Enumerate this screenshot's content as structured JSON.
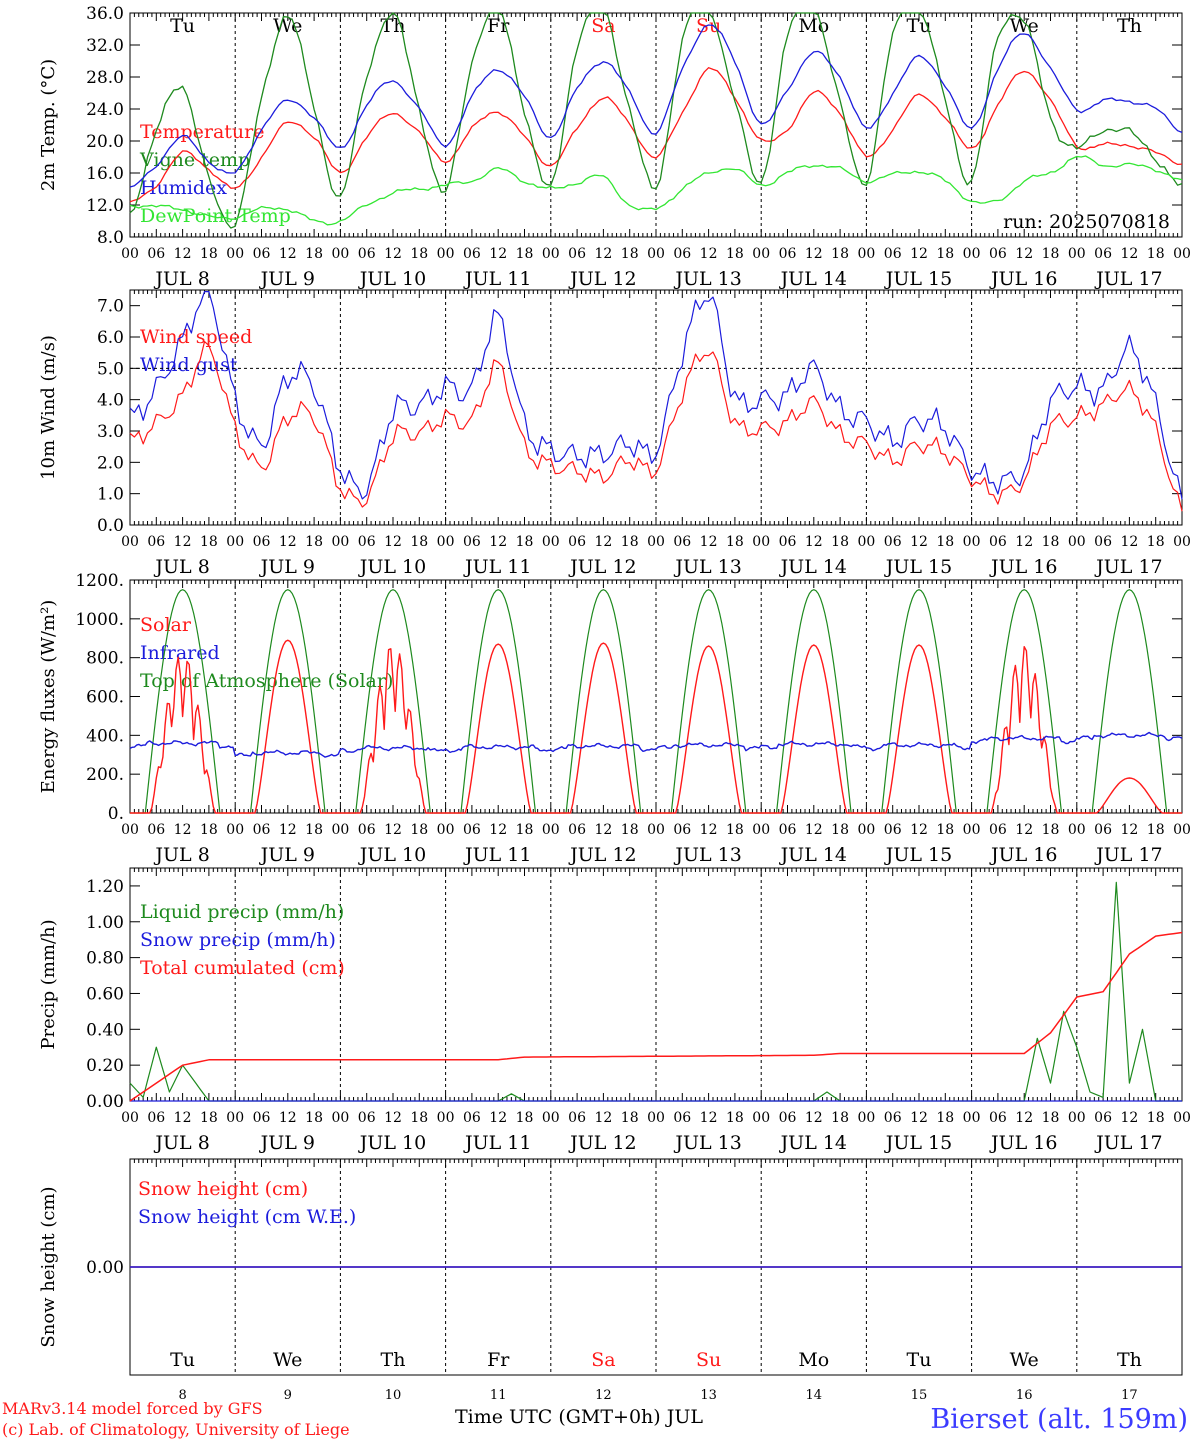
{
  "colors": {
    "red": "#ff1a1a",
    "darkgreen": "#1e8a1e",
    "blue": "#1c1cdc",
    "lightgreen": "#33e633",
    "axis": "#000000",
    "station": "#3b3bff"
  },
  "time_axis": {
    "hour_labels": [
      "00",
      "06",
      "12",
      "18"
    ],
    "final_label": "00",
    "date_labels": [
      "JUL  8",
      "JUL  9",
      "JUL 10",
      "JUL 11",
      "JUL 12",
      "JUL 13",
      "JUL 14",
      "JUL 15",
      "JUL 16",
      "JUL 17"
    ],
    "weekdays": [
      "Tu",
      "We",
      "Th",
      "Fr",
      "Sa",
      "Su",
      "Mo",
      "Tu",
      "We",
      "Th"
    ],
    "weekend_weekdays": [
      "Sa",
      "Su"
    ],
    "day_numbers": [
      "8",
      "9",
      "10",
      "11",
      "12",
      "13",
      "14",
      "15",
      "16",
      "17"
    ],
    "xlabel": "Time UTC (GMT+0h) JUL"
  },
  "footer": {
    "credit_line1": "MARv3.14 model forced by GFS",
    "credit_line2": "(c) Lab. of Climatology, University of Liege",
    "station": "Bierset (alt. 159m)"
  },
  "chart_data": [
    {
      "type": "line",
      "ylabel": "2m Temp. (°C)",
      "ylim": [
        8,
        36
      ],
      "yticks": [
        "8.0",
        "12.0",
        "16.0",
        "20.0",
        "24.0",
        "28.0",
        "32.0",
        "36.0"
      ],
      "run_label": "run: 2025070818",
      "x_unit": "hours since JUL 8 00 UTC, every 6 h",
      "x": [
        0,
        6,
        12,
        18,
        24,
        30,
        36,
        42,
        48,
        54,
        60,
        66,
        72,
        78,
        84,
        90,
        96,
        102,
        108,
        114,
        120,
        126,
        132,
        138,
        144,
        150,
        156,
        162,
        168,
        174,
        180,
        186,
        192,
        198,
        204,
        210,
        216,
        222,
        228,
        234,
        240
      ],
      "series": [
        {
          "name": "Temperature",
          "color": "red",
          "values": [
            12.2,
            14.5,
            18.5,
            16.5,
            14.0,
            18.0,
            22.3,
            20.5,
            16.0,
            20.5,
            23.5,
            21.0,
            17.5,
            21.5,
            23.7,
            20.5,
            17.0,
            21.5,
            25.5,
            22.0,
            18.0,
            23.5,
            29.0,
            25.5,
            20.0,
            21.5,
            26.0,
            23.5,
            18.0,
            21.5,
            25.7,
            23.0,
            19.0,
            24.5,
            28.8,
            25.0,
            19.5,
            19.5,
            19.5,
            18.5,
            17.2
          ]
        },
        {
          "name": "Vigne temp",
          "color": "darkgreen",
          "values": [
            11.0,
            21.0,
            27.0,
            15.0,
            10.0,
            25.0,
            36.0,
            24.0,
            13.0,
            28.0,
            36.0,
            24.0,
            13.5,
            30.0,
            36.5,
            24.0,
            14.0,
            32.0,
            36.5,
            24.0,
            14.0,
            32.5,
            37.0,
            25.0,
            15.0,
            33.0,
            37.0,
            24.5,
            15.0,
            33.0,
            37.0,
            25.0,
            15.0,
            33.0,
            35.0,
            23.0,
            19.0,
            21.5,
            21.0,
            18.0,
            14.0
          ]
        },
        {
          "name": "Humidex",
          "color": "blue",
          "values": [
            14.0,
            17.0,
            20.5,
            17.5,
            16.0,
            21.5,
            25.0,
            23.0,
            19.0,
            24.5,
            27.5,
            24.0,
            19.5,
            25.5,
            29.0,
            25.5,
            20.5,
            26.5,
            30.0,
            26.0,
            21.0,
            29.0,
            34.5,
            30.0,
            22.0,
            26.5,
            31.0,
            28.0,
            21.5,
            26.0,
            30.5,
            27.0,
            21.5,
            29.0,
            33.5,
            29.0,
            24.0,
            25.0,
            25.0,
            24.0,
            21.2
          ]
        },
        {
          "name": "DewPoint Temp",
          "color": "lightgreen",
          "values": [
            12.0,
            11.8,
            11.5,
            10.5,
            10.5,
            11.5,
            11.5,
            10.0,
            10.0,
            12.0,
            13.5,
            14.0,
            14.5,
            15.0,
            16.5,
            15.0,
            14.0,
            14.8,
            15.5,
            12.0,
            11.5,
            14.0,
            16.0,
            16.5,
            14.5,
            16.0,
            17.0,
            16.5,
            15.0,
            15.8,
            16.2,
            15.0,
            12.5,
            12.5,
            15.0,
            16.0,
            18.0,
            17.0,
            17.0,
            16.5,
            15.0
          ]
        }
      ]
    },
    {
      "type": "line",
      "ylabel": "10m Wind (m/s)",
      "ylim": [
        0,
        7.5
      ],
      "yticks": [
        "0.0",
        "1.0",
        "2.0",
        "3.0",
        "4.0",
        "5.0",
        "6.0",
        "7.0"
      ],
      "reference_line": 5.0,
      "x_unit": "hours since JUL 8 00 UTC, every 6 h",
      "x": [
        0,
        6,
        12,
        18,
        24,
        30,
        36,
        42,
        48,
        54,
        60,
        66,
        72,
        78,
        84,
        90,
        96,
        102,
        108,
        114,
        120,
        126,
        132,
        138,
        144,
        150,
        156,
        162,
        168,
        174,
        180,
        186,
        192,
        198,
        204,
        210,
        216,
        222,
        228,
        234,
        240
      ],
      "series": [
        {
          "name": "Wind speed",
          "color": "red",
          "values": [
            2.6,
            3.3,
            4.2,
            5.6,
            3.0,
            1.8,
            3.5,
            3.5,
            1.2,
            0.8,
            2.8,
            3.0,
            3.5,
            3.3,
            5.0,
            2.5,
            2.0,
            1.8,
            1.5,
            2.0,
            1.8,
            4.3,
            5.6,
            3.2,
            3.0,
            3.3,
            4.0,
            2.9,
            2.5,
            2.0,
            2.6,
            2.4,
            1.5,
            0.9,
            1.4,
            3.2,
            3.5,
            3.8,
            4.2,
            3.0,
            0.5
          ]
        },
        {
          "name": "Wind gust",
          "color": "blue",
          "values": [
            3.3,
            4.4,
            6.0,
            7.3,
            3.9,
            2.5,
            4.8,
            4.5,
            1.8,
            1.1,
            3.6,
            3.9,
            4.5,
            4.3,
            6.5,
            3.2,
            2.5,
            2.3,
            2.2,
            2.5,
            2.4,
            5.6,
            7.4,
            4.0,
            3.9,
            4.2,
            5.1,
            3.7,
            3.2,
            2.6,
            3.4,
            3.2,
            1.8,
            1.3,
            1.7,
            4.0,
            4.5,
            4.3,
            5.5,
            3.8,
            0.9
          ]
        }
      ]
    },
    {
      "type": "line",
      "ylabel": "Energy fluxes (W/m²)",
      "ylim": [
        0,
        1200
      ],
      "yticks": [
        "0.",
        "200.",
        "400.",
        "600.",
        "800.",
        "1000.",
        "1200."
      ],
      "x_unit": "hours since JUL 8 00 UTC",
      "daily_peaks_x": [
        12,
        36,
        60,
        84,
        108,
        132,
        156,
        180,
        204,
        228
      ],
      "series": [
        {
          "name": "Solar",
          "color": "red",
          "daily_peak_values": [
            830,
            890,
            880,
            870,
            875,
            860,
            865,
            865,
            870,
            180
          ]
        },
        {
          "name": "Infrared",
          "color": "blue",
          "daily_mean_values": [
            345,
            295,
            320,
            325,
            330,
            335,
            340,
            335,
            370,
            385
          ]
        },
        {
          "name": "Top of Atmosphere (Solar)",
          "color": "darkgreen",
          "daily_peak_values": [
            1150,
            1150,
            1150,
            1150,
            1150,
            1150,
            1150,
            1150,
            1150,
            1150
          ]
        }
      ]
    },
    {
      "type": "line",
      "ylabel": "Precip (mm/h)",
      "ylim": [
        0,
        1.3
      ],
      "yticks": [
        "0.00",
        "0.20",
        "0.40",
        "0.60",
        "0.80",
        "1.00",
        "1.20"
      ],
      "x_unit": "hours since JUL 8 00 UTC",
      "series": [
        {
          "name": "Liquid precip (mm/h)",
          "color": "darkgreen",
          "points": [
            [
              0,
              0.1
            ],
            [
              3,
              0.02
            ],
            [
              6,
              0.3
            ],
            [
              9,
              0.05
            ],
            [
              12,
              0.2
            ],
            [
              15,
              0.1
            ],
            [
              18,
              0.0
            ],
            [
              84,
              0.0
            ],
            [
              87,
              0.04
            ],
            [
              90,
              0.0
            ],
            [
              156,
              0.0
            ],
            [
              159,
              0.05
            ],
            [
              162,
              0.0
            ],
            [
              204,
              0.0
            ],
            [
              207,
              0.35
            ],
            [
              210,
              0.1
            ],
            [
              213,
              0.5
            ],
            [
              216,
              0.3
            ],
            [
              219,
              0.05
            ],
            [
              222,
              0.02
            ],
            [
              225,
              1.22
            ],
            [
              228,
              0.1
            ],
            [
              231,
              0.4
            ],
            [
              234,
              0.0
            ],
            [
              240,
              0.0
            ]
          ]
        },
        {
          "name": "Snow precip (mm/h)",
          "color": "blue",
          "points": [
            [
              0,
              0.0
            ],
            [
              240,
              0.0
            ]
          ]
        },
        {
          "name": "Total cumulated (cm)",
          "color": "red",
          "points": [
            [
              0,
              0.0
            ],
            [
              6,
              0.1
            ],
            [
              12,
              0.2
            ],
            [
              18,
              0.23
            ],
            [
              84,
              0.23
            ],
            [
              90,
              0.245
            ],
            [
              156,
              0.255
            ],
            [
              162,
              0.265
            ],
            [
              204,
              0.265
            ],
            [
              210,
              0.38
            ],
            [
              216,
              0.58
            ],
            [
              222,
              0.61
            ],
            [
              228,
              0.82
            ],
            [
              234,
              0.92
            ],
            [
              240,
              0.94
            ]
          ]
        }
      ]
    },
    {
      "type": "line",
      "ylabel": "Snow height (cm)",
      "ylim": [
        -1,
        1
      ],
      "yticks": [
        "0.00"
      ],
      "x_unit": "hours since JUL 8 00 UTC",
      "series": [
        {
          "name": "Snow height (cm)",
          "color": "red",
          "points": [
            [
              0,
              0.0
            ],
            [
              240,
              0.0
            ]
          ]
        },
        {
          "name": "Snow height (cm W.E.)",
          "color": "blue",
          "points": [
            [
              0,
              0.0
            ],
            [
              240,
              0.0
            ]
          ]
        }
      ]
    }
  ]
}
